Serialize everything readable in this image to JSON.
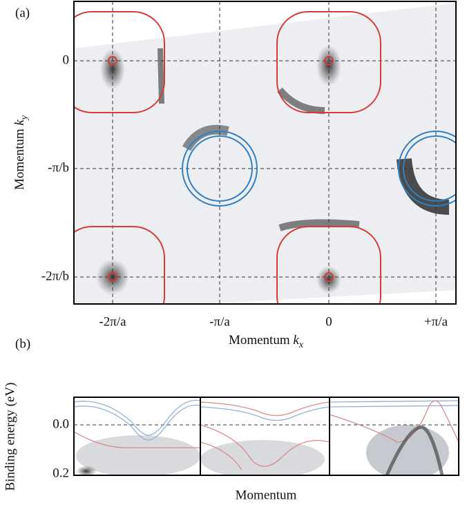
{
  "panel_a": {
    "label": "(a)",
    "x_ticks": [
      "-2π/a",
      "-π/a",
      "0",
      "+π/a"
    ],
    "y_ticks": [
      "0",
      "-π/b",
      "-2π/b"
    ],
    "x_axis": {
      "text": "Momentum",
      "symbol": "k",
      "subscript": "x"
    },
    "y_axis": {
      "text": "Momentum",
      "symbol": "k",
      "subscript": "y"
    }
  },
  "panel_b": {
    "label": "(b)",
    "y_ticks": [
      "0.0",
      "0.2"
    ],
    "y_axis": "Binding energy (eV)",
    "x_axis": "Momentum"
  }
}
